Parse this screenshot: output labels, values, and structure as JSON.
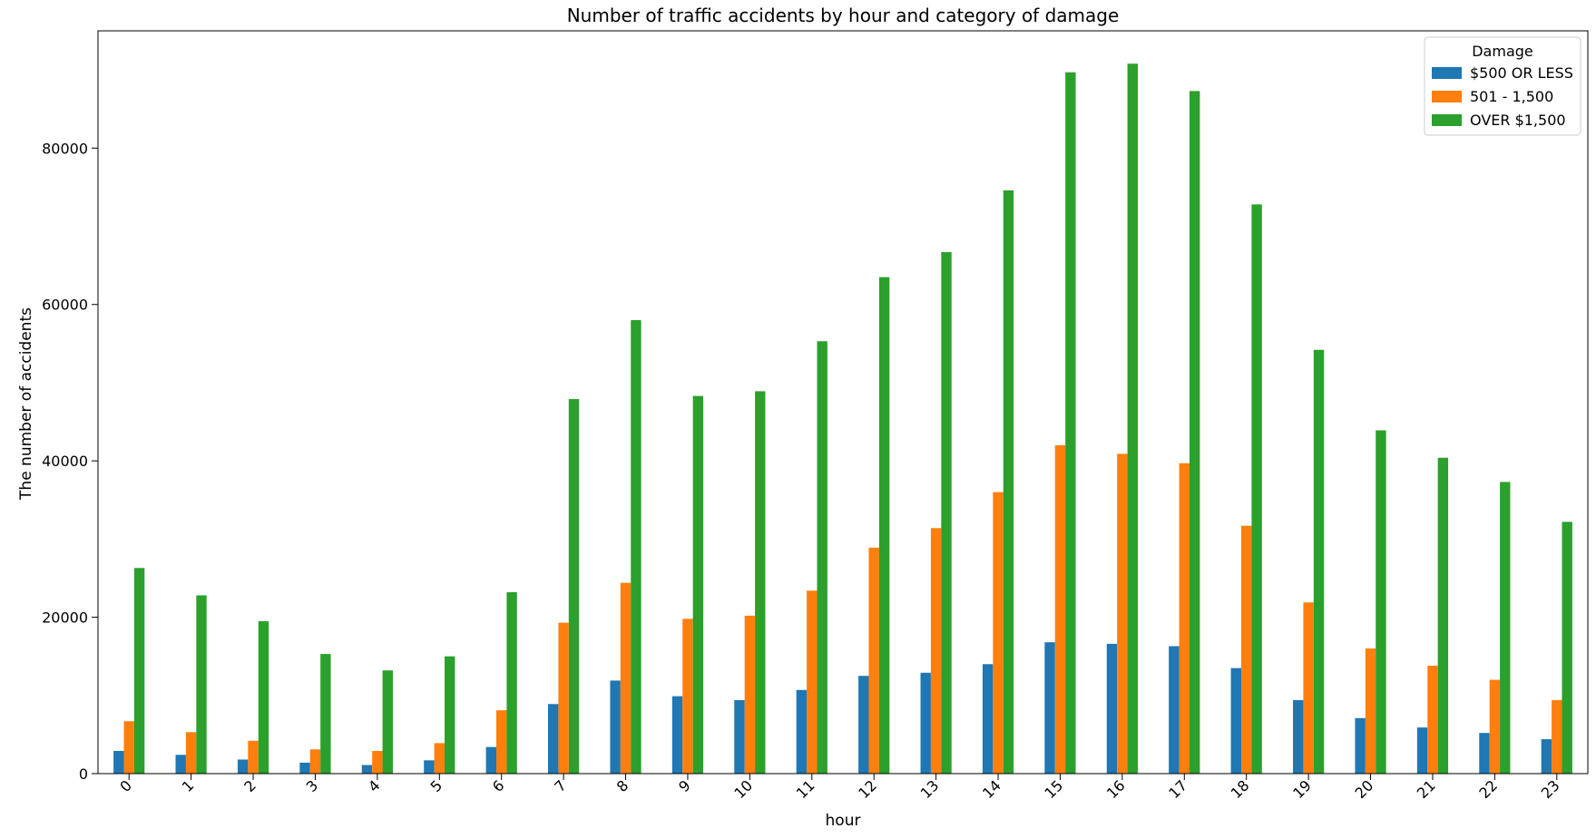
{
  "chart_data": {
    "type": "bar",
    "title": "Number of traffic accidents by hour and category of damage",
    "xlabel": "hour",
    "ylabel": "The number of accidents",
    "ylim": [
      0,
      95000
    ],
    "yticks": [
      0,
      20000,
      40000,
      60000,
      80000
    ],
    "grid": false,
    "legend": {
      "title": "Damage",
      "position": "top-right"
    },
    "categories": [
      "0",
      "1",
      "2",
      "3",
      "4",
      "5",
      "6",
      "7",
      "8",
      "9",
      "10",
      "11",
      "12",
      "13",
      "14",
      "15",
      "16",
      "17",
      "18",
      "19",
      "20",
      "21",
      "22",
      "23"
    ],
    "series": [
      {
        "name": "$500 OR LESS",
        "color": "#1f77b4",
        "values": [
          2900,
          2400,
          1800,
          1400,
          1100,
          1700,
          3400,
          8900,
          11900,
          9900,
          9400,
          10700,
          12500,
          12900,
          14000,
          16800,
          16600,
          16300,
          13500,
          9400,
          7100,
          5900,
          5200,
          4400
        ]
      },
      {
        "name": "501 - 1,500",
        "color": "#ff7f0e",
        "values": [
          6700,
          5300,
          4200,
          3100,
          2900,
          3900,
          8100,
          19300,
          24400,
          19800,
          20200,
          23400,
          28900,
          31400,
          36000,
          42000,
          40900,
          39700,
          31700,
          21900,
          16000,
          13800,
          12000,
          9400
        ]
      },
      {
        "name": "OVER $1,500",
        "color": "#2ca02c",
        "values": [
          26300,
          22800,
          19500,
          15300,
          13200,
          15000,
          23200,
          47900,
          58000,
          48300,
          48900,
          55300,
          63500,
          66700,
          74600,
          89700,
          90800,
          87300,
          72800,
          54200,
          43900,
          40400,
          37300,
          32200
        ]
      }
    ]
  }
}
